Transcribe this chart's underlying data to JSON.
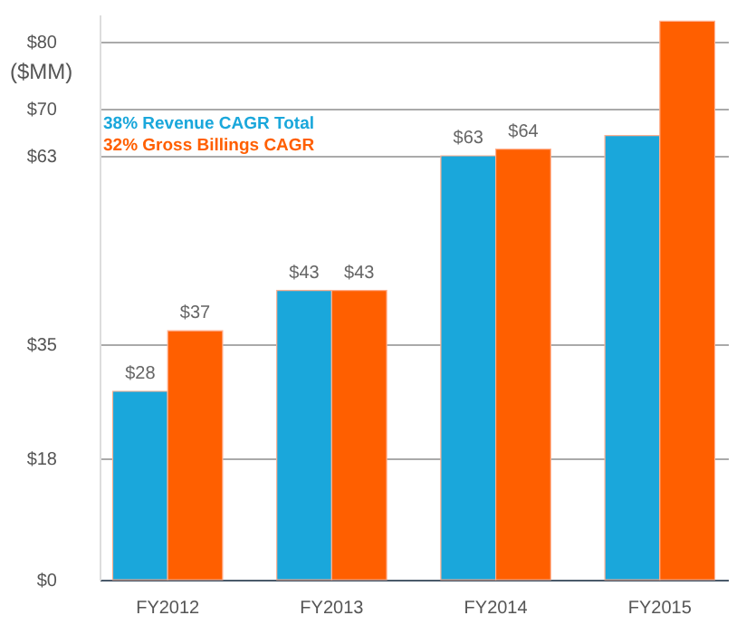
{
  "chart_data": {
    "type": "bar",
    "ylabel": "($MM)",
    "categories": [
      "FY2012",
      "FY2013",
      "FY2014",
      "FY2015"
    ],
    "series": [
      {
        "name": "38% Revenue CAGR Total",
        "color": "#1aa7db",
        "values": [
          28,
          43,
          63,
          66
        ],
        "value_labels": [
          "$28",
          "$43",
          "$63",
          null
        ]
      },
      {
        "name": "32% Gross Billings CAGR",
        "color": "#ff5f00",
        "values": [
          37,
          43,
          64,
          83
        ],
        "value_labels": [
          "$37",
          "$43",
          "$64",
          null
        ]
      }
    ],
    "ylim": [
      0,
      84
    ],
    "yticks": [
      {
        "value": 0,
        "label": "$0"
      },
      {
        "value": 18,
        "label": "$18"
      },
      {
        "value": 35,
        "label": "$35"
      },
      {
        "value": 63,
        "label": "$63"
      },
      {
        "value": 70,
        "label": "$70"
      },
      {
        "value": 80,
        "label": "$80"
      }
    ],
    "grid": "y",
    "legend": "top left"
  }
}
